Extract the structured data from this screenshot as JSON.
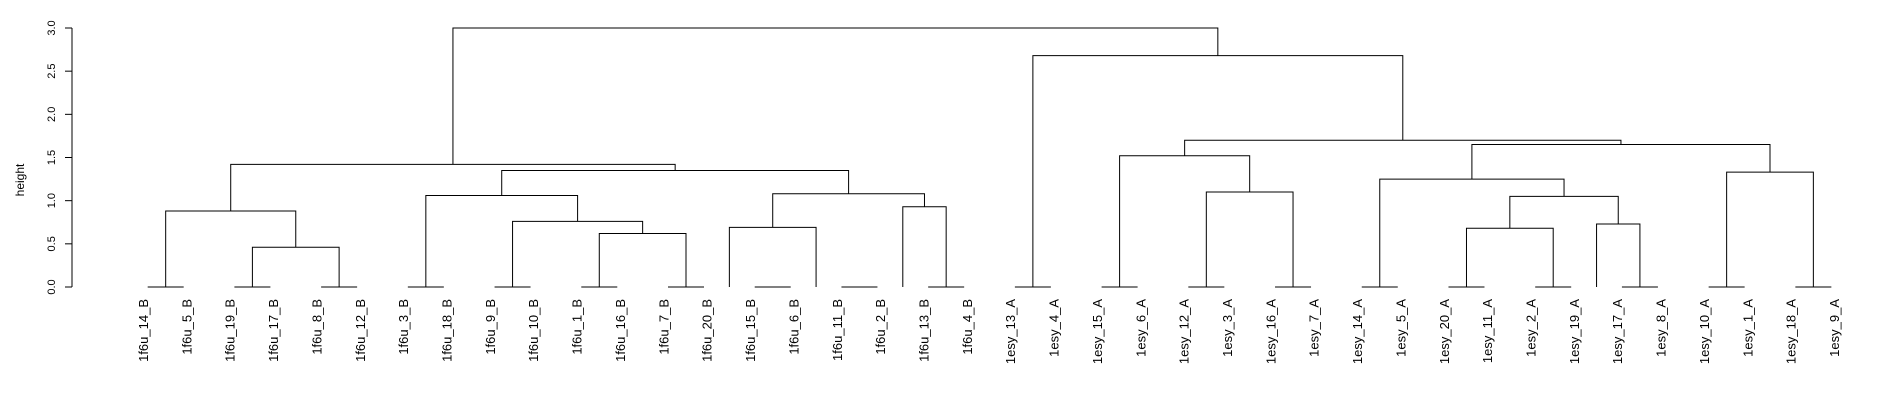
{
  "chart_data": {
    "type": "dendrogram",
    "ylabel": "height",
    "ylim": [
      0,
      3.0
    ],
    "yticks": [
      "0.0",
      "0.5",
      "1.0",
      "1.5",
      "2.0",
      "2.5",
      "3.0"
    ],
    "leaves": [
      "1f6u_14_B",
      "1f6u_5_B",
      "1f6u_19_B",
      "1f6u_17_B",
      "1f6u_8_B",
      "1f6u_12_B",
      "1f6u_3_B",
      "1f6u_18_B",
      "1f6u_9_B",
      "1f6u_10_B",
      "1f6u_1_B",
      "1f6u_16_B",
      "1f6u_7_B",
      "1f6u_20_B",
      "1f6u_15_B",
      "1f6u_6_B",
      "1f6u_11_B",
      "1f6u_2_B",
      "1f6u_13_B",
      "1f6u_4_B",
      "1esy_13_A",
      "1esy_4_A",
      "1esy_15_A",
      "1esy_6_A",
      "1esy_12_A",
      "1esy_3_A",
      "1esy_16_A",
      "1esy_7_A",
      "1esy_14_A",
      "1esy_5_A",
      "1esy_20_A",
      "1esy_11_A",
      "1esy_2_A",
      "1esy_19_A",
      "1esy_17_A",
      "1esy_8_A",
      "1esy_10_A",
      "1esy_1_A",
      "1esy_18_A",
      "1esy_9_A"
    ],
    "merges": [
      [
        0,
        1,
        0.0
      ],
      [
        2,
        3,
        0.0
      ],
      [
        4,
        5,
        0.0
      ],
      [
        6,
        7,
        0.0
      ],
      [
        8,
        9,
        0.0
      ],
      [
        10,
        11,
        0.0
      ],
      [
        12,
        13,
        0.0
      ],
      [
        14,
        15,
        0.0
      ],
      [
        16,
        17,
        0.0
      ],
      [
        18,
        19,
        0.0
      ],
      [
        20,
        21,
        0.0
      ],
      [
        22,
        23,
        0.0
      ],
      [
        24,
        25,
        0.0
      ],
      [
        26,
        27,
        0.0
      ],
      [
        28,
        29,
        0.0
      ],
      [
        30,
        31,
        0.0
      ],
      [
        32,
        33,
        0.0
      ],
      [
        34,
        35,
        0.0
      ],
      [
        36,
        37,
        0.0
      ],
      [
        38,
        39,
        0.0
      ],
      [
        30,
        31,
        0.68
      ],
      [
        33,
        34,
        0.73
      ],
      [
        10,
        11,
        0.62
      ],
      [
        13,
        14,
        0.69
      ],
      [
        17,
        18,
        0.93
      ],
      [
        25,
        26,
        1.1
      ],
      [
        36,
        37,
        1.33
      ],
      [
        3,
        4,
        0.46
      ],
      [
        9,
        10,
        0.76
      ],
      [
        2,
        3,
        0.88
      ],
      [
        7,
        8,
        1.06
      ],
      [
        15,
        16,
        1.08
      ],
      [
        30,
        33,
        1.05
      ],
      [
        29,
        30,
        1.25
      ],
      [
        5,
        6,
        1.06
      ],
      [
        7,
        13,
        1.35
      ],
      [
        0,
        2,
        1.42
      ],
      [
        23,
        25,
        1.52
      ],
      [
        29,
        36,
        1.65
      ],
      [
        23,
        29,
        1.7
      ],
      [
        20,
        23,
        2.68
      ],
      [
        0,
        20,
        3.0
      ]
    ]
  }
}
